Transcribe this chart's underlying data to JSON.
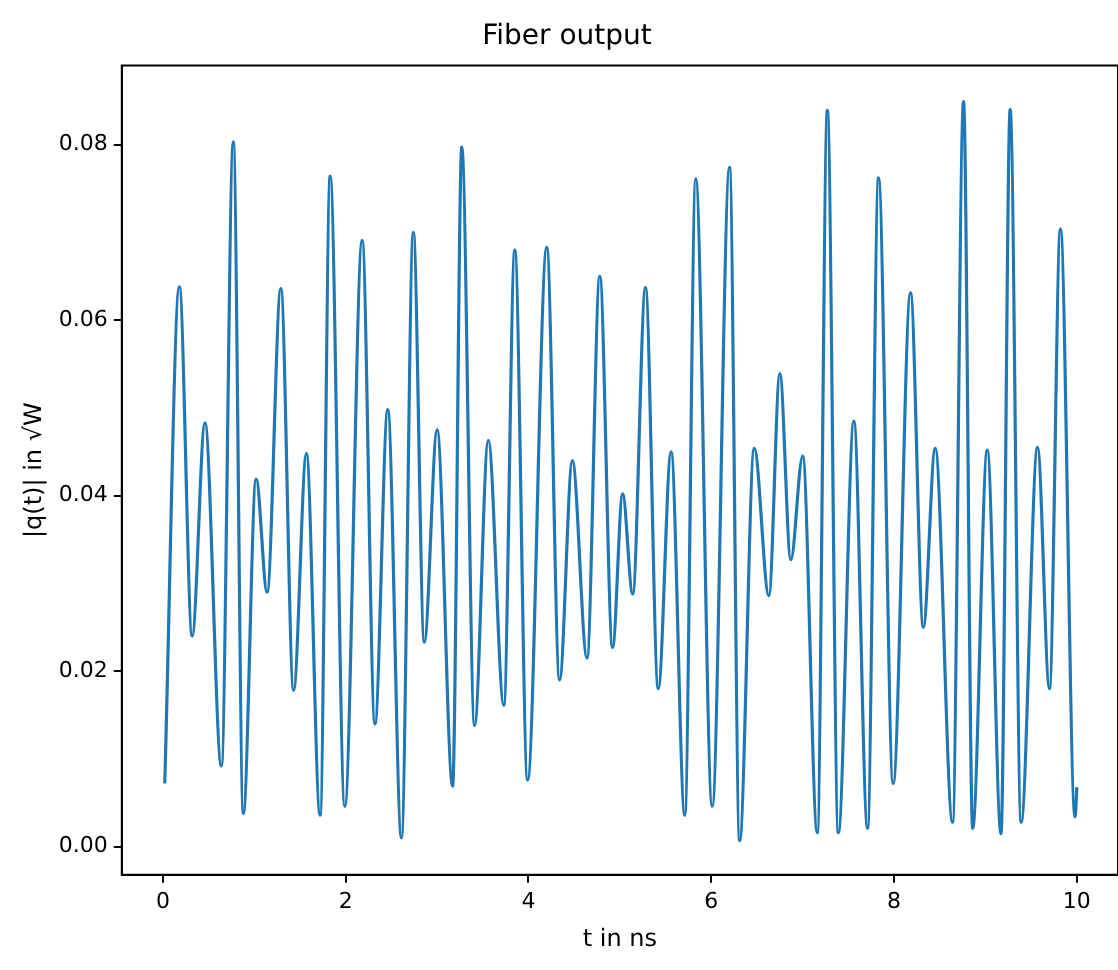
{
  "chart_data": {
    "type": "line",
    "title": "Fiber output",
    "xlabel": "t in ns",
    "ylabel": "|q(t)| in √W",
    "xlim": [
      -0.45,
      10.45
    ],
    "ylim": [
      -0.0032,
      0.089
    ],
    "xticks": [
      0,
      2,
      4,
      6,
      8,
      10
    ],
    "yticks": [
      {
        "value": 0,
        "label": "0.00"
      },
      {
        "value": 0.02,
        "label": "0.02"
      },
      {
        "value": 0.04,
        "label": "0.04"
      },
      {
        "value": 0.06,
        "label": "0.06"
      },
      {
        "value": 0.08,
        "label": "0.08"
      }
    ],
    "grid": false,
    "legend": false,
    "marker": "none",
    "line_style": "solid",
    "series": [
      {
        "color": "#1f77b4",
        "x": [
          0.02,
          0.18,
          0.32,
          0.46,
          0.64,
          0.77,
          0.88,
          1.02,
          1.14,
          1.29,
          1.43,
          1.57,
          1.72,
          1.83,
          1.99,
          2.18,
          2.32,
          2.46,
          2.61,
          2.74,
          2.86,
          3.0,
          3.17,
          3.27,
          3.41,
          3.56,
          3.73,
          3.85,
          3.99,
          4.2,
          4.34,
          4.48,
          4.64,
          4.78,
          4.92,
          5.03,
          5.14,
          5.28,
          5.42,
          5.56,
          5.71,
          5.83,
          6.01,
          6.2,
          6.31,
          6.47,
          6.63,
          6.75,
          6.87,
          7.0,
          7.16,
          7.27,
          7.39,
          7.56,
          7.71,
          7.83,
          7.99,
          8.18,
          8.32,
          8.45,
          8.64,
          8.76,
          8.86,
          9.02,
          9.17,
          9.27,
          9.39,
          9.57,
          9.7,
          9.82,
          9.98,
          10.0
        ],
        "values": [
          0.0072,
          0.0638,
          0.024,
          0.0483,
          0.0092,
          0.0803,
          0.0038,
          0.0419,
          0.029,
          0.0636,
          0.0178,
          0.0448,
          0.0036,
          0.0764,
          0.0046,
          0.0691,
          0.014,
          0.0498,
          0.001,
          0.07,
          0.0233,
          0.0475,
          0.0069,
          0.0797,
          0.0138,
          0.0463,
          0.0161,
          0.068,
          0.0076,
          0.0683,
          0.019,
          0.044,
          0.0215,
          0.065,
          0.0227,
          0.0402,
          0.0288,
          0.0637,
          0.018,
          0.045,
          0.0036,
          0.0761,
          0.0046,
          0.0774,
          0.0007,
          0.0454,
          0.0286,
          0.0539,
          0.0327,
          0.0445,
          0.0016,
          0.0839,
          0.0016,
          0.0485,
          0.0021,
          0.0762,
          0.0072,
          0.0631,
          0.025,
          0.0454,
          0.0028,
          0.0849,
          0.0021,
          0.0452,
          0.0015,
          0.084,
          0.0028,
          0.0455,
          0.018,
          0.0704,
          0.0034,
          0.0068
        ]
      }
    ]
  }
}
